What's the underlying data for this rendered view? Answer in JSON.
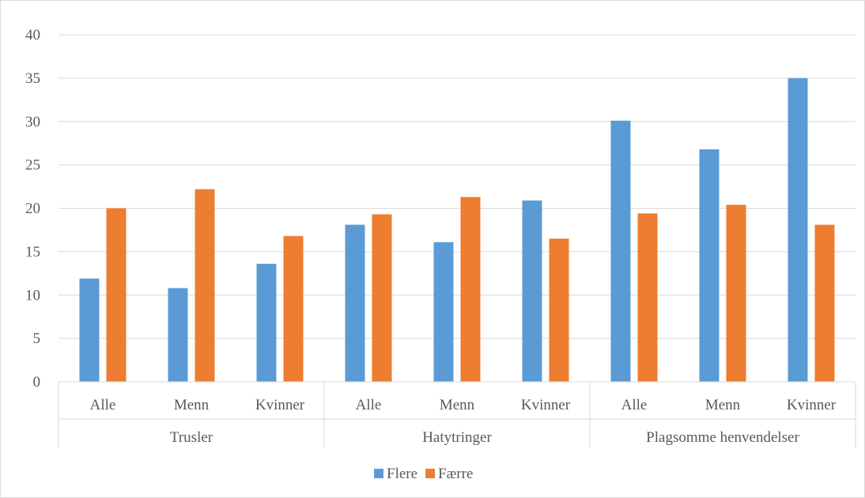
{
  "chart_data": {
    "type": "bar",
    "title": "",
    "xlabel": "",
    "ylabel": "",
    "ylim": [
      0,
      40
    ],
    "yticks": [
      0,
      5,
      10,
      15,
      20,
      25,
      30,
      35,
      40
    ],
    "grid": true,
    "legend_position": "bottom",
    "groups": [
      {
        "label": "Trusler",
        "categories": [
          "Alle",
          "Menn",
          "Kvinner"
        ]
      },
      {
        "label": "Hatytringer",
        "categories": [
          "Alle",
          "Menn",
          "Kvinner"
        ]
      },
      {
        "label": "Plagsomme henvendelser",
        "categories": [
          "Alle",
          "Menn",
          "Kvinner"
        ]
      }
    ],
    "series": [
      {
        "name": "Flere",
        "color": "#5B9BD5",
        "values": [
          11.9,
          10.8,
          13.6,
          18.1,
          16.1,
          20.9,
          30.1,
          26.8,
          35.0
        ]
      },
      {
        "name": "Færre",
        "color": "#ED7D31",
        "values": [
          20.0,
          22.2,
          16.8,
          19.3,
          21.3,
          16.5,
          19.4,
          20.4,
          18.1
        ]
      }
    ]
  }
}
